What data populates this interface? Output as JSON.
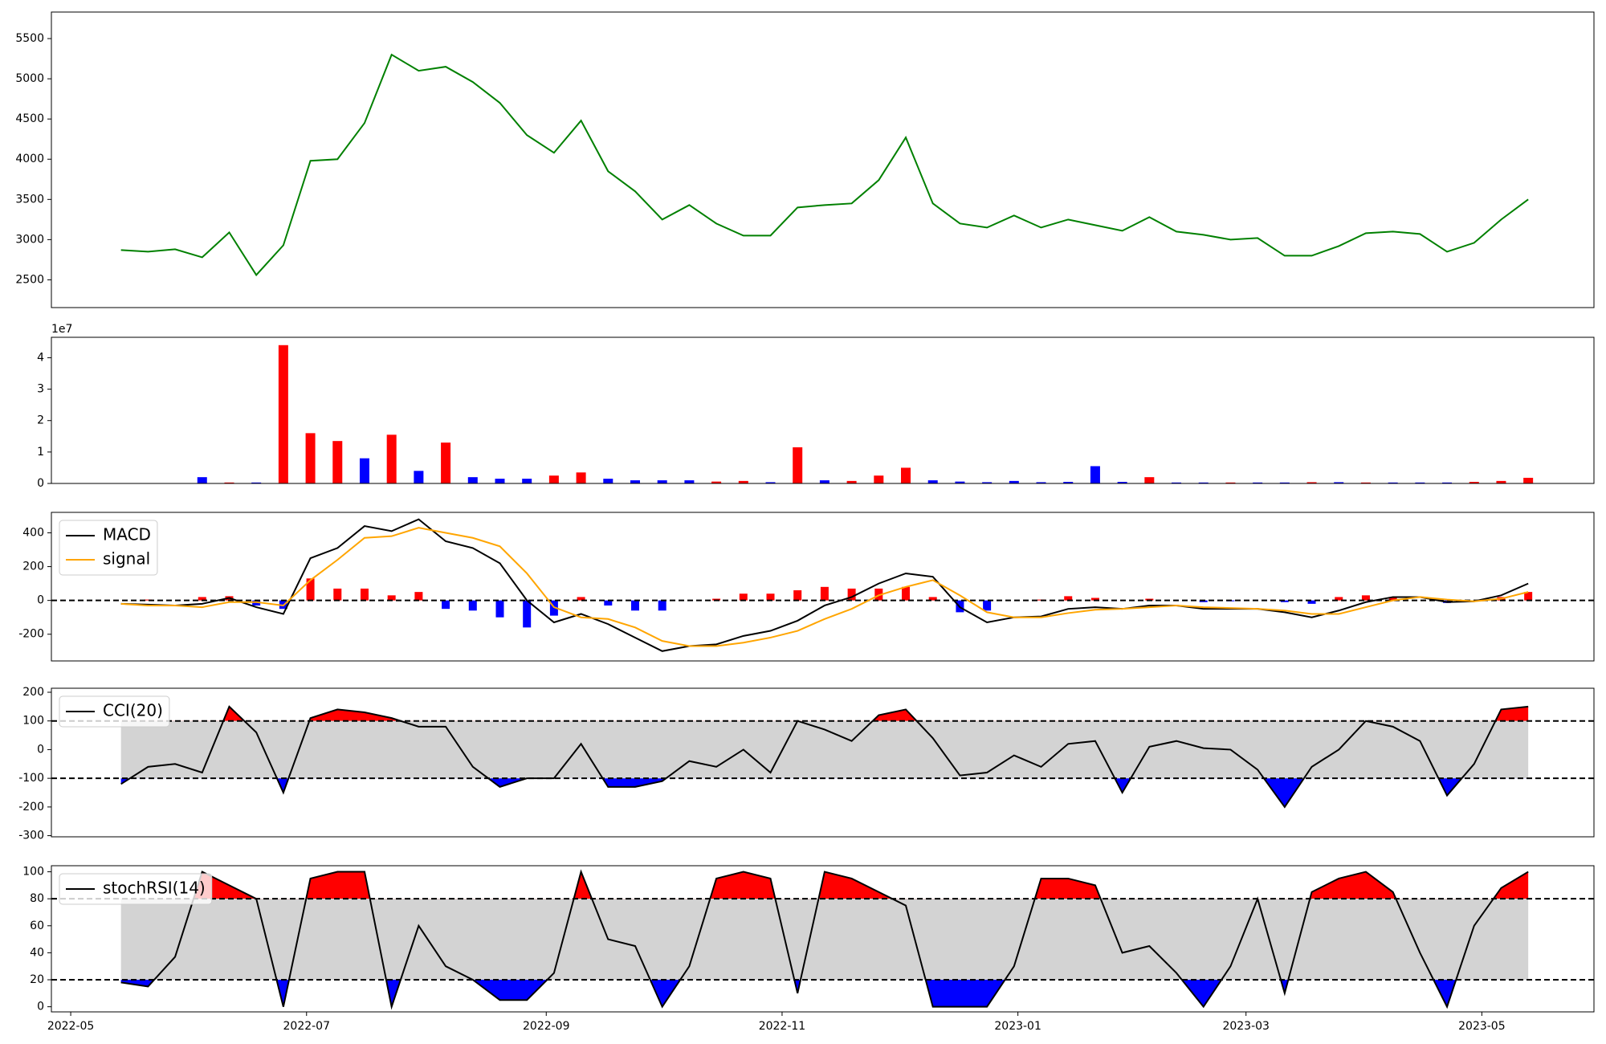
{
  "chart_data": [
    {
      "type": "line",
      "x": [
        19126,
        19133,
        19140,
        19147,
        19154,
        19161,
        19168,
        19175,
        19182,
        19189,
        19196,
        19203,
        19210,
        19217,
        19224,
        19231,
        19238,
        19245,
        19252,
        19259,
        19266,
        19273,
        19280,
        19287,
        19294,
        19301,
        19308,
        19315,
        19322,
        19329,
        19336,
        19343,
        19350,
        19357,
        19364,
        19371,
        19378,
        19385,
        19392,
        19399,
        19406,
        19413,
        19420,
        19427,
        19434,
        19441,
        19448,
        19455,
        19462,
        19469,
        19476,
        19483,
        19490
      ],
      "series": [
        {
          "color": "#008000",
          "values": [
            2870,
            2850,
            2880,
            2780,
            3090,
            2560,
            2930,
            3980,
            4000,
            4450,
            5300,
            5100,
            5150,
            4960,
            4700,
            4300,
            4080,
            4480,
            3850,
            3600,
            3250,
            3430,
            3200,
            3050,
            3050,
            3400,
            3430,
            3450,
            3740,
            4270,
            3450,
            3200,
            3150,
            3300,
            3150,
            3250,
            3180,
            3110,
            3280,
            3100,
            3060,
            3000,
            3020,
            2800,
            2800,
            2920,
            3080,
            3100,
            3070,
            2850,
            2960,
            3250,
            3500
          ]
        }
      ],
      "xlim": [
        19108,
        19507
      ],
      "ylim": [
        2155,
        5830
      ],
      "yticks": [
        2500,
        3000,
        3500,
        4000,
        4500,
        5000,
        5500
      ]
    },
    {
      "type": "bar",
      "x": [
        19126,
        19133,
        19140,
        19147,
        19154,
        19161,
        19168,
        19175,
        19182,
        19189,
        19196,
        19203,
        19210,
        19217,
        19224,
        19231,
        19238,
        19245,
        19252,
        19259,
        19266,
        19273,
        19280,
        19287,
        19294,
        19301,
        19308,
        19315,
        19322,
        19329,
        19336,
        19343,
        19350,
        19357,
        19364,
        19371,
        19378,
        19385,
        19392,
        19399,
        19406,
        19413,
        19420,
        19427,
        19434,
        19441,
        19448,
        19455,
        19462,
        19469,
        19476,
        19483,
        19490
      ],
      "values": [
        100000,
        100000,
        100000,
        2000000,
        300000,
        300000,
        44000000,
        16000000,
        13500000,
        8000000,
        15500000,
        4000000,
        13000000,
        2000000,
        1500000,
        1500000,
        2500000,
        3500000,
        1500000,
        1000000,
        1000000,
        1000000,
        600000,
        800000,
        400000,
        11500000,
        1000000,
        800000,
        2500000,
        5000000,
        1000000,
        600000,
        400000,
        800000,
        400000,
        500000,
        5500000,
        500000,
        2000000,
        300000,
        300000,
        300000,
        300000,
        300000,
        400000,
        400000,
        300000,
        300000,
        300000,
        300000,
        500000,
        800000,
        1800000
      ],
      "colors": [
        "#ff0000",
        "#0000ff",
        "#ff0000",
        "#0000ff",
        "#ff0000",
        "#0000ff",
        "#ff0000",
        "#ff0000",
        "#ff0000",
        "#0000ff",
        "#ff0000",
        "#0000ff",
        "#ff0000",
        "#0000ff",
        "#0000ff",
        "#0000ff",
        "#ff0000",
        "#ff0000",
        "#0000ff",
        "#0000ff",
        "#0000ff",
        "#0000ff",
        "#ff0000",
        "#ff0000",
        "#0000ff",
        "#ff0000",
        "#0000ff",
        "#ff0000",
        "#ff0000",
        "#ff0000",
        "#0000ff",
        "#0000ff",
        "#0000ff",
        "#0000ff",
        "#0000ff",
        "#0000ff",
        "#0000ff",
        "#0000ff",
        "#ff0000",
        "#0000ff",
        "#0000ff",
        "#ff0000",
        "#0000ff",
        "#0000ff",
        "#ff0000",
        "#0000ff",
        "#ff0000",
        "#0000ff",
        "#0000ff",
        "#0000ff",
        "#ff0000",
        "#ff0000",
        "#ff0000"
      ],
      "offset_label": "1e7",
      "xlim": [
        19108,
        19507
      ],
      "ylim": [
        0,
        46500000
      ],
      "yticks": [
        0,
        {
          "value": 10000000,
          "label": "1"
        },
        {
          "value": 20000000,
          "label": "2"
        },
        {
          "value": 30000000,
          "label": "3"
        },
        {
          "value": 40000000,
          "label": "4"
        }
      ]
    },
    {
      "type": "macd",
      "x": [
        19126,
        19133,
        19140,
        19147,
        19154,
        19161,
        19168,
        19175,
        19182,
        19189,
        19196,
        19203,
        19210,
        19217,
        19224,
        19231,
        19238,
        19245,
        19252,
        19259,
        19266,
        19273,
        19280,
        19287,
        19294,
        19301,
        19308,
        19315,
        19322,
        19329,
        19336,
        19343,
        19350,
        19357,
        19364,
        19371,
        19378,
        19385,
        19392,
        19399,
        19406,
        19413,
        19420,
        19427,
        19434,
        19441,
        19448,
        19455,
        19462,
        19469,
        19476,
        19483,
        19490
      ],
      "series": [
        {
          "name": "MACD",
          "color": "#000000",
          "values": [
            -20,
            -25,
            -30,
            -20,
            15,
            -40,
            -80,
            250,
            310,
            440,
            410,
            480,
            350,
            310,
            220,
            0,
            -130,
            -80,
            -140,
            -220,
            -300,
            -270,
            -260,
            -210,
            -180,
            -120,
            -30,
            20,
            100,
            160,
            140,
            -40,
            -130,
            -100,
            -95,
            -50,
            -40,
            -50,
            -30,
            -30,
            -50,
            -50,
            -50,
            -70,
            -100,
            -60,
            -10,
            20,
            20,
            -10,
            -5,
            30,
            100
          ]
        },
        {
          "name": "signal",
          "color": "#ffa500",
          "values": [
            -20,
            -30,
            -30,
            -40,
            -10,
            -10,
            -30,
            120,
            240,
            370,
            380,
            430,
            400,
            370,
            320,
            160,
            -40,
            -100,
            -110,
            -160,
            -240,
            -270,
            -270,
            -250,
            -220,
            -180,
            -110,
            -50,
            30,
            80,
            120,
            30,
            -70,
            -100,
            -100,
            -75,
            -55,
            -50,
            -40,
            -30,
            -40,
            -45,
            -50,
            -60,
            -80,
            -80,
            -40,
            0,
            20,
            5,
            -5,
            10,
            50
          ]
        }
      ],
      "histogram": {
        "values": [
          0,
          5,
          0,
          20,
          25,
          -30,
          -50,
          130,
          70,
          70,
          30,
          50,
          -50,
          -60,
          -100,
          -160,
          -90,
          20,
          -30,
          -60,
          -60,
          0,
          10,
          40,
          40,
          60,
          80,
          70,
          70,
          80,
          20,
          -70,
          -60,
          0,
          5,
          25,
          15,
          0,
          10,
          0,
          -10,
          -5,
          0,
          -10,
          -20,
          20,
          30,
          20,
          0,
          -15,
          0,
          20,
          50
        ],
        "up_color": "#ff0000",
        "down_color": "#0000ff"
      },
      "zero_line": 0,
      "legend": "upper left",
      "xlim": [
        19108,
        19507
      ],
      "ylim": [
        -358,
        521
      ],
      "yticks": [
        -200,
        0,
        200,
        400
      ]
    },
    {
      "type": "band",
      "x": [
        19126,
        19133,
        19140,
        19147,
        19154,
        19161,
        19168,
        19175,
        19182,
        19189,
        19196,
        19203,
        19210,
        19217,
        19224,
        19231,
        19238,
        19245,
        19252,
        19259,
        19266,
        19273,
        19280,
        19287,
        19294,
        19301,
        19308,
        19315,
        19322,
        19329,
        19336,
        19343,
        19350,
        19357,
        19364,
        19371,
        19378,
        19385,
        19392,
        19399,
        19406,
        19413,
        19420,
        19427,
        19434,
        19441,
        19448,
        19455,
        19462,
        19469,
        19476,
        19483,
        19490
      ],
      "series": [
        {
          "name": "CCI(20)",
          "color": "#000000",
          "values": [
            -120,
            -60,
            -50,
            -80,
            150,
            60,
            -150,
            110,
            140,
            130,
            110,
            80,
            80,
            -60,
            -130,
            -100,
            -100,
            20,
            -130,
            -130,
            -110,
            -40,
            -60,
            0,
            -80,
            100,
            70,
            30,
            120,
            140,
            40,
            -90,
            -80,
            -20,
            -60,
            20,
            30,
            -150,
            10,
            30,
            5,
            0,
            -70,
            -200,
            -60,
            0,
            100,
            80,
            30,
            -160,
            -50,
            140,
            150
          ]
        }
      ],
      "upper_band": 100,
      "lower_band": -100,
      "upper_color": "#ff0000",
      "lower_color": "#0000ff",
      "band_color": "#d3d3d3",
      "legend": "upper left",
      "xlim": [
        19108,
        19507
      ],
      "ylim": [
        -304,
        214
      ],
      "yticks": [
        -300,
        -200,
        -100,
        0,
        100,
        200
      ]
    },
    {
      "type": "band",
      "x": [
        19126,
        19133,
        19140,
        19147,
        19154,
        19161,
        19168,
        19175,
        19182,
        19189,
        19196,
        19203,
        19210,
        19217,
        19224,
        19231,
        19238,
        19245,
        19252,
        19259,
        19266,
        19273,
        19280,
        19287,
        19294,
        19301,
        19308,
        19315,
        19322,
        19329,
        19336,
        19343,
        19350,
        19357,
        19364,
        19371,
        19378,
        19385,
        19392,
        19399,
        19406,
        19413,
        19420,
        19427,
        19434,
        19441,
        19448,
        19455,
        19462,
        19469,
        19476,
        19483,
        19490
      ],
      "series": [
        {
          "name": "stochRSI(14)",
          "color": "#000000",
          "values": [
            18,
            15,
            37,
            100,
            90,
            80,
            0,
            95,
            100,
            100,
            0,
            60,
            30,
            20,
            5,
            5,
            25,
            100,
            50,
            45,
            0,
            30,
            95,
            100,
            95,
            10,
            100,
            95,
            85,
            75,
            0,
            0,
            0,
            30,
            95,
            95,
            90,
            40,
            45,
            25,
            0,
            30,
            80,
            10,
            85,
            95,
            100,
            85,
            40,
            0,
            60,
            88,
            100
          ]
        }
      ],
      "upper_band": 80,
      "lower_band": 20,
      "upper_color": "#ff0000",
      "lower_color": "#0000ff",
      "band_color": "#d3d3d3",
      "legend": "upper left",
      "xlim": [
        19108,
        19507
      ],
      "ylim": [
        -3.8,
        104.5
      ],
      "yticks": [
        0,
        20,
        40,
        60,
        80,
        100
      ],
      "xticks": [
        {
          "value": 19113,
          "label": "2022-05"
        },
        {
          "value": 19174,
          "label": "2022-07"
        },
        {
          "value": 19236,
          "label": "2022-09"
        },
        {
          "value": 19297,
          "label": "2022-11"
        },
        {
          "value": 19358,
          "label": "2023-01"
        },
        {
          "value": 19417,
          "label": "2023-03"
        },
        {
          "value": 19478,
          "label": "2023-05"
        }
      ]
    }
  ]
}
